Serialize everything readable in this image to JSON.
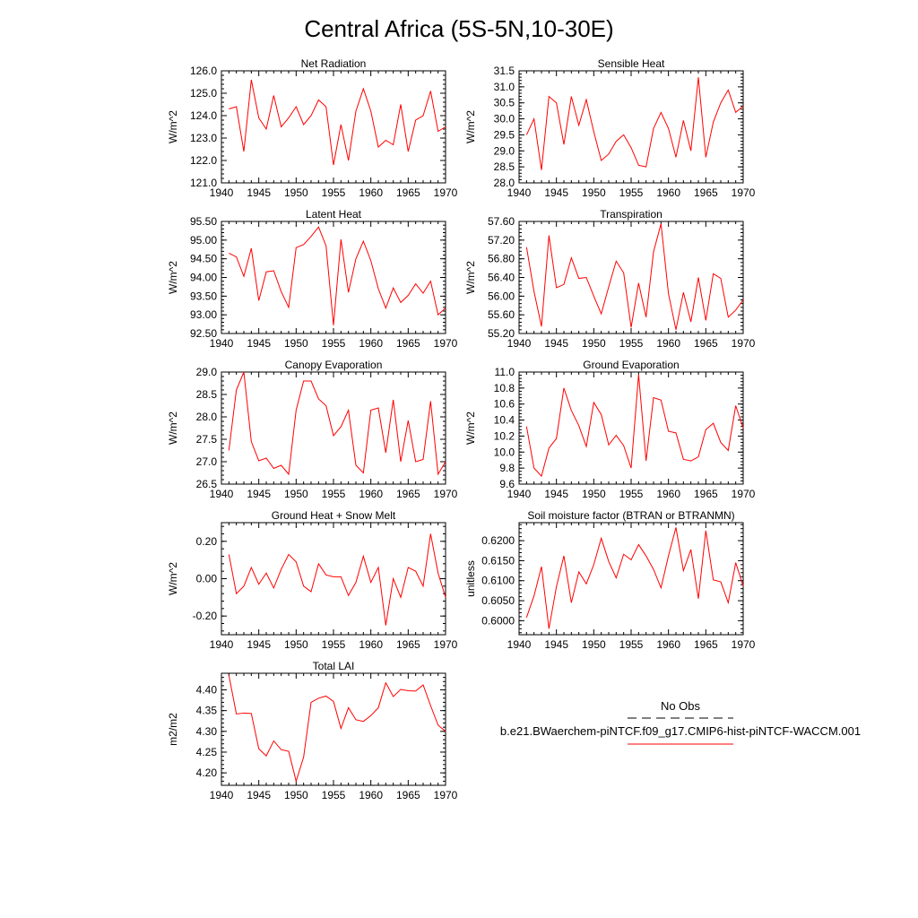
{
  "title": "Central Africa (5S-5N,10-30E)",
  "colors": {
    "series": "#ff0000",
    "obs": "#000000",
    "axis": "#000000"
  },
  "legend": {
    "obs_label": "No Obs",
    "model_label": "b.e21.BWaerchem-piNTCF.f09_g17.CMIP6-hist-piNTCF-WACCM.001"
  },
  "chart_data": [
    {
      "type": "line",
      "title": "Net Radiation",
      "ylabel": "W/m^2",
      "xlim": [
        1940,
        1970
      ],
      "ylim": [
        121.0,
        126.0
      ],
      "xticks": [
        "1940",
        "1945",
        "1950",
        "1955",
        "1960",
        "1965",
        "1970"
      ],
      "yticks": [
        "121.0",
        "122.0",
        "123.0",
        "124.0",
        "125.0",
        "126.0"
      ],
      "series": [
        {
          "x": [
            1941,
            1942,
            1943,
            1944,
            1945,
            1946,
            1947,
            1948,
            1949,
            1950,
            1951,
            1952,
            1953,
            1954,
            1955,
            1956,
            1957,
            1958,
            1959,
            1960,
            1961,
            1962,
            1963,
            1964,
            1965,
            1966,
            1967,
            1968,
            1969,
            1970
          ],
          "values": [
            124.3,
            124.4,
            122.4,
            125.6,
            123.9,
            123.4,
            124.9,
            123.5,
            123.9,
            124.4,
            123.6,
            124.0,
            124.7,
            124.4,
            121.8,
            123.6,
            122.0,
            124.2,
            125.2,
            124.2,
            122.6,
            122.9,
            122.7,
            124.5,
            122.4,
            123.8,
            124.0,
            125.1,
            123.3,
            123.5
          ]
        }
      ]
    },
    {
      "type": "line",
      "title": "Sensible Heat",
      "ylabel": "W/m^2",
      "xlim": [
        1940,
        1970
      ],
      "ylim": [
        28.0,
        31.5
      ],
      "xticks": [
        "1940",
        "1945",
        "1950",
        "1955",
        "1960",
        "1965",
        "1970"
      ],
      "yticks": [
        "28.0",
        "28.5",
        "29.0",
        "29.5",
        "30.0",
        "30.5",
        "31.0",
        "31.5"
      ],
      "series": [
        {
          "x": [
            1941,
            1942,
            1943,
            1944,
            1945,
            1946,
            1947,
            1948,
            1949,
            1950,
            1951,
            1952,
            1953,
            1954,
            1955,
            1956,
            1957,
            1958,
            1959,
            1960,
            1961,
            1962,
            1963,
            1964,
            1965,
            1966,
            1967,
            1968,
            1969,
            1970
          ],
          "values": [
            29.5,
            30.0,
            28.4,
            30.7,
            30.5,
            29.2,
            30.7,
            29.8,
            30.6,
            29.6,
            28.7,
            28.9,
            29.3,
            29.5,
            29.1,
            28.55,
            28.5,
            29.7,
            30.2,
            29.7,
            28.8,
            29.95,
            29.0,
            31.3,
            28.8,
            29.9,
            30.5,
            30.9,
            30.2,
            30.4
          ]
        }
      ]
    },
    {
      "type": "line",
      "title": "Latent Heat",
      "ylabel": "W/m^2",
      "xlim": [
        1940,
        1970
      ],
      "ylim": [
        92.5,
        95.5
      ],
      "xticks": [
        "1940",
        "1945",
        "1950",
        "1955",
        "1960",
        "1965",
        "1970"
      ],
      "yticks": [
        "92.50",
        "93.00",
        "93.50",
        "94.00",
        "94.50",
        "95.00",
        "95.50"
      ],
      "series": [
        {
          "x": [
            1941,
            1942,
            1943,
            1944,
            1945,
            1946,
            1947,
            1948,
            1949,
            1950,
            1951,
            1952,
            1953,
            1954,
            1955,
            1956,
            1957,
            1958,
            1959,
            1960,
            1961,
            1962,
            1963,
            1964,
            1965,
            1966,
            1967,
            1968,
            1969,
            1970
          ],
          "values": [
            94.65,
            94.55,
            94.03,
            94.78,
            93.38,
            94.15,
            94.18,
            93.62,
            93.2,
            94.8,
            94.88,
            95.1,
            95.35,
            94.85,
            92.72,
            95.02,
            93.6,
            94.5,
            94.97,
            94.45,
            93.7,
            93.18,
            93.72,
            93.33,
            93.52,
            93.83,
            93.58,
            93.9,
            93.0,
            93.18
          ]
        }
      ]
    },
    {
      "type": "line",
      "title": "Transpiration",
      "ylabel": "W/m^2",
      "xlim": [
        1940,
        1970
      ],
      "ylim": [
        55.2,
        57.6
      ],
      "xticks": [
        "1940",
        "1945",
        "1950",
        "1955",
        "1960",
        "1965",
        "1970"
      ],
      "yticks": [
        "55.20",
        "55.60",
        "56.00",
        "56.40",
        "56.80",
        "57.20",
        "57.60"
      ],
      "series": [
        {
          "x": [
            1941,
            1942,
            1943,
            1944,
            1945,
            1946,
            1947,
            1948,
            1949,
            1950,
            1951,
            1952,
            1953,
            1954,
            1955,
            1956,
            1957,
            1958,
            1959,
            1960,
            1961,
            1962,
            1963,
            1964,
            1965,
            1966,
            1967,
            1968,
            1969,
            1970
          ],
          "values": [
            57.05,
            56.1,
            55.35,
            57.3,
            56.18,
            56.25,
            56.82,
            56.38,
            56.4,
            56.0,
            55.62,
            56.2,
            56.75,
            56.5,
            55.33,
            56.28,
            55.55,
            56.95,
            57.55,
            56.05,
            55.28,
            56.08,
            55.45,
            56.4,
            55.48,
            56.48,
            56.38,
            55.55,
            55.7,
            55.92
          ]
        }
      ]
    },
    {
      "type": "line",
      "title": "Canopy Evaporation",
      "ylabel": "W/m^2",
      "xlim": [
        1940,
        1970
      ],
      "ylim": [
        26.5,
        29.0
      ],
      "xticks": [
        "1940",
        "1945",
        "1950",
        "1955",
        "1960",
        "1965",
        "1970"
      ],
      "yticks": [
        "26.5",
        "27.0",
        "27.5",
        "28.0",
        "28.5",
        "29.0"
      ],
      "series": [
        {
          "x": [
            1941,
            1942,
            1943,
            1944,
            1945,
            1946,
            1947,
            1948,
            1949,
            1950,
            1951,
            1952,
            1953,
            1954,
            1955,
            1956,
            1957,
            1958,
            1959,
            1960,
            1961,
            1962,
            1963,
            1964,
            1965,
            1966,
            1967,
            1968,
            1969,
            1970
          ],
          "values": [
            27.25,
            28.6,
            29.0,
            27.45,
            27.02,
            27.08,
            26.85,
            26.92,
            26.72,
            28.15,
            28.8,
            28.8,
            28.4,
            28.25,
            27.58,
            27.78,
            28.15,
            26.92,
            26.75,
            28.15,
            28.2,
            27.2,
            28.38,
            27.0,
            27.92,
            27.0,
            27.05,
            28.35,
            26.72,
            27.0
          ]
        }
      ]
    },
    {
      "type": "line",
      "title": "Ground Evaporation",
      "ylabel": "W/m^2",
      "xlim": [
        1940,
        1970
      ],
      "ylim": [
        9.6,
        11.0
      ],
      "xticks": [
        "1940",
        "1945",
        "1950",
        "1955",
        "1960",
        "1965",
        "1970"
      ],
      "yticks": [
        "9.6",
        "9.8",
        "10.0",
        "10.2",
        "10.4",
        "10.6",
        "10.8",
        "11.0"
      ],
      "series": [
        {
          "x": [
            1941,
            1942,
            1943,
            1944,
            1945,
            1946,
            1947,
            1948,
            1949,
            1950,
            1951,
            1952,
            1953,
            1954,
            1955,
            1956,
            1957,
            1958,
            1959,
            1960,
            1961,
            1962,
            1963,
            1964,
            1965,
            1966,
            1967,
            1968,
            1969,
            1970
          ],
          "values": [
            10.32,
            9.8,
            9.7,
            10.05,
            10.17,
            10.8,
            10.52,
            10.33,
            10.07,
            10.62,
            10.47,
            10.09,
            10.21,
            10.08,
            9.8,
            10.97,
            9.89,
            10.68,
            10.65,
            10.26,
            10.24,
            9.91,
            9.89,
            9.94,
            10.28,
            10.36,
            10.12,
            10.02,
            10.58,
            10.3
          ]
        }
      ]
    },
    {
      "type": "line",
      "title": "Ground Heat + Snow Melt",
      "ylabel": "W/m^2",
      "xlim": [
        1940,
        1970
      ],
      "ylim": [
        -0.3,
        0.3
      ],
      "xticks": [
        "1940",
        "1945",
        "1950",
        "1955",
        "1960",
        "1965",
        "1970"
      ],
      "yticks": [
        "-0.20",
        "0.00",
        "0.20"
      ],
      "ytick_values": [
        -0.2,
        0.0,
        0.2
      ],
      "series": [
        {
          "x": [
            1941,
            1942,
            1943,
            1944,
            1945,
            1946,
            1947,
            1948,
            1949,
            1950,
            1951,
            1952,
            1953,
            1954,
            1955,
            1956,
            1957,
            1958,
            1959,
            1960,
            1961,
            1962,
            1963,
            1964,
            1965,
            1966,
            1967,
            1968,
            1969,
            1970
          ],
          "values": [
            0.13,
            -0.08,
            -0.04,
            0.06,
            -0.03,
            0.03,
            -0.05,
            0.05,
            0.13,
            0.09,
            -0.04,
            -0.07,
            0.08,
            0.02,
            0.01,
            0.01,
            -0.09,
            -0.02,
            0.12,
            -0.02,
            0.06,
            -0.25,
            0.0,
            -0.1,
            0.06,
            0.04,
            -0.04,
            0.24,
            0.03,
            -0.1
          ]
        }
      ]
    },
    {
      "type": "line",
      "title": "Soil moisture factor (BTRAN or BTRANMN)",
      "ylabel": "unitless",
      "xlim": [
        1940,
        1970
      ],
      "ylim": [
        0.5965,
        0.6245
      ],
      "xticks": [
        "1940",
        "1945",
        "1950",
        "1955",
        "1960",
        "1965",
        "1970"
      ],
      "yticks": [
        "0.6000",
        "0.6050",
        "0.6100",
        "0.6150",
        "0.6200"
      ],
      "ytick_values": [
        0.6,
        0.605,
        0.61,
        0.615,
        0.62
      ],
      "series": [
        {
          "x": [
            1941,
            1942,
            1943,
            1944,
            1945,
            1946,
            1947,
            1948,
            1949,
            1950,
            1951,
            1952,
            1953,
            1954,
            1955,
            1956,
            1957,
            1958,
            1959,
            1960,
            1961,
            1962,
            1963,
            1964,
            1965,
            1966,
            1967,
            1968,
            1969,
            1970
          ],
          "values": [
            0.6008,
            0.6062,
            0.6135,
            0.598,
            0.6085,
            0.6162,
            0.6045,
            0.6122,
            0.6092,
            0.614,
            0.6206,
            0.6148,
            0.6107,
            0.6166,
            0.6152,
            0.619,
            0.6162,
            0.6128,
            0.6082,
            0.6162,
            0.6233,
            0.6125,
            0.6178,
            0.6055,
            0.6225,
            0.6102,
            0.6097,
            0.6045,
            0.6145,
            0.6087
          ]
        }
      ]
    },
    {
      "type": "line",
      "title": "Total LAI",
      "ylabel": "m2/m2",
      "xlim": [
        1940,
        1970
      ],
      "ylim": [
        4.17,
        4.44
      ],
      "xticks": [
        "1940",
        "1945",
        "1950",
        "1955",
        "1960",
        "1965",
        "1970"
      ],
      "yticks": [
        "4.20",
        "4.25",
        "4.30",
        "4.35",
        "4.40"
      ],
      "ytick_values": [
        4.2,
        4.25,
        4.3,
        4.35,
        4.4
      ],
      "series": [
        {
          "x": [
            1941,
            1942,
            1943,
            1944,
            1945,
            1946,
            1947,
            1948,
            1949,
            1950,
            1951,
            1952,
            1953,
            1954,
            1955,
            1956,
            1957,
            1958,
            1959,
            1960,
            1961,
            1962,
            1963,
            1964,
            1965,
            1966,
            1967,
            1968,
            1969,
            1970
          ],
          "values": [
            4.435,
            4.342,
            4.344,
            4.343,
            4.258,
            4.241,
            4.277,
            4.256,
            4.252,
            4.18,
            4.238,
            4.37,
            4.38,
            4.385,
            4.372,
            4.307,
            4.357,
            4.328,
            4.324,
            4.338,
            4.357,
            4.417,
            4.384,
            4.401,
            4.398,
            4.397,
            4.412,
            4.362,
            4.315,
            4.3
          ]
        }
      ]
    }
  ]
}
